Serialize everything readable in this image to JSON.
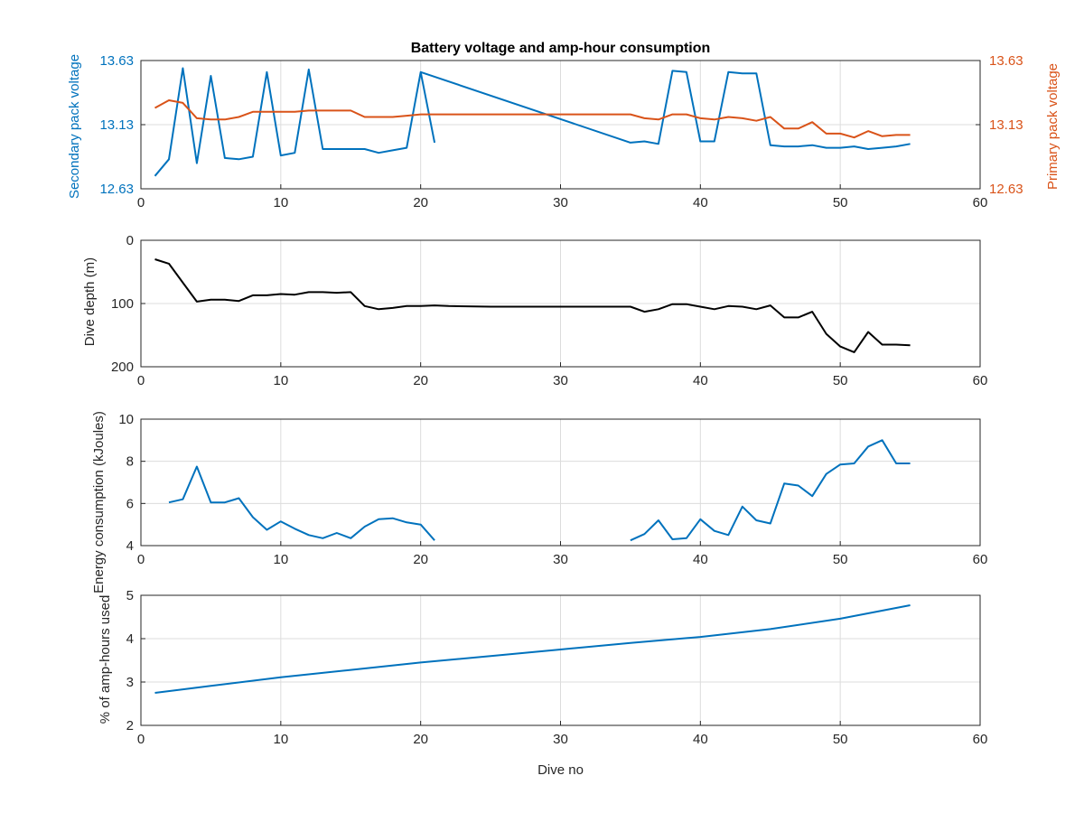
{
  "chart_data": [
    {
      "type": "line",
      "title": "Battery voltage and amp-hour consumption",
      "xlabel": "",
      "ylabel": "Secondary pack voltage",
      "ylabel_right": "Primary pack voltage",
      "xlim": [
        0,
        60
      ],
      "ylim": [
        12.63,
        13.63
      ],
      "ylim_right": [
        12.63,
        13.63
      ],
      "xticks": [
        "0",
        "10",
        "20",
        "30",
        "40",
        "50",
        "60"
      ],
      "yticks": [
        "12.63",
        "13.13",
        "13.63"
      ],
      "yticks_right": [
        "12.63",
        "13.13",
        "13.63"
      ],
      "grid": true,
      "series": [
        {
          "axis": "left",
          "color": "#0072bd",
          "points": [
            [
              1,
              12.73
            ],
            [
              2,
              12.86
            ],
            [
              3,
              13.57
            ],
            [
              4,
              12.83
            ],
            [
              5,
              13.51
            ],
            [
              6,
              12.87
            ],
            [
              7,
              12.86
            ],
            [
              8,
              12.88
            ],
            [
              9,
              13.54
            ],
            [
              10,
              12.89
            ],
            [
              11,
              12.91
            ],
            [
              12,
              13.56
            ],
            [
              13,
              12.94
            ],
            [
              14,
              12.94
            ],
            [
              15,
              12.94
            ],
            [
              16,
              12.94
            ],
            [
              17,
              12.91
            ],
            [
              18,
              12.93
            ],
            [
              19,
              12.95
            ],
            [
              20,
              13.54
            ],
            [
              21,
              12.99
            ]
          ]
        },
        {
          "axis": "left",
          "color": "#0072bd",
          "points": [
            [
              20,
              13.54
            ],
            [
              35,
              12.99
            ],
            [
              36,
              13.0
            ],
            [
              37,
              12.98
            ],
            [
              38,
              13.55
            ],
            [
              39,
              13.54
            ],
            [
              40,
              13.0
            ],
            [
              41,
              13.0
            ],
            [
              42,
              13.54
            ],
            [
              43,
              13.53
            ],
            [
              44,
              13.53
            ],
            [
              45,
              12.97
            ],
            [
              46,
              12.96
            ],
            [
              47,
              12.96
            ],
            [
              48,
              12.97
            ],
            [
              49,
              12.95
            ],
            [
              50,
              12.95
            ],
            [
              51,
              12.96
            ],
            [
              52,
              12.94
            ],
            [
              53,
              12.95
            ],
            [
              54,
              12.96
            ],
            [
              55,
              12.98
            ]
          ]
        },
        {
          "axis": "right",
          "color": "#d95319",
          "points": [
            [
              1,
              13.26
            ],
            [
              2,
              13.32
            ],
            [
              3,
              13.3
            ],
            [
              4,
              13.18
            ],
            [
              5,
              13.17
            ],
            [
              6,
              13.17
            ],
            [
              7,
              13.19
            ],
            [
              8,
              13.23
            ],
            [
              9,
              13.23
            ],
            [
              10,
              13.23
            ],
            [
              11,
              13.23
            ],
            [
              12,
              13.24
            ],
            [
              13,
              13.24
            ],
            [
              14,
              13.24
            ],
            [
              15,
              13.24
            ],
            [
              16,
              13.19
            ],
            [
              17,
              13.19
            ],
            [
              18,
              13.19
            ],
            [
              19,
              13.2
            ],
            [
              20,
              13.21
            ],
            [
              21,
              13.21
            ],
            [
              25,
              13.21
            ],
            [
              30,
              13.21
            ],
            [
              35,
              13.21
            ],
            [
              36,
              13.18
            ],
            [
              37,
              13.17
            ],
            [
              38,
              13.21
            ],
            [
              39,
              13.21
            ],
            [
              40,
              13.18
            ],
            [
              41,
              13.17
            ],
            [
              42,
              13.19
            ],
            [
              43,
              13.18
            ],
            [
              44,
              13.16
            ],
            [
              45,
              13.19
            ],
            [
              46,
              13.1
            ],
            [
              47,
              13.1
            ],
            [
              48,
              13.15
            ],
            [
              49,
              13.06
            ],
            [
              50,
              13.06
            ],
            [
              51,
              13.03
            ],
            [
              52,
              13.08
            ],
            [
              53,
              13.04
            ],
            [
              54,
              13.05
            ],
            [
              55,
              13.05
            ]
          ]
        }
      ]
    },
    {
      "type": "line",
      "title": "",
      "xlabel": "",
      "ylabel": "Dive depth (m)",
      "xlim": [
        0,
        60
      ],
      "ylim": [
        0,
        200
      ],
      "y_reversed": true,
      "xticks": [
        "0",
        "10",
        "20",
        "30",
        "40",
        "50",
        "60"
      ],
      "yticks": [
        "0",
        "100",
        "200"
      ],
      "grid": true,
      "series": [
        {
          "color": "#000000",
          "points": [
            [
              1,
              30
            ],
            [
              2,
              37
            ],
            [
              3,
              67
            ],
            [
              4,
              97
            ],
            [
              5,
              94
            ],
            [
              6,
              94
            ],
            [
              7,
              96
            ],
            [
              8,
              87
            ],
            [
              9,
              87
            ],
            [
              10,
              85
            ],
            [
              11,
              86
            ],
            [
              12,
              82
            ],
            [
              13,
              82
            ],
            [
              14,
              83
            ],
            [
              15,
              82
            ],
            [
              16,
              104
            ],
            [
              17,
              109
            ],
            [
              18,
              107
            ],
            [
              19,
              104
            ],
            [
              20,
              104
            ],
            [
              21,
              103
            ],
            [
              22,
              104
            ],
            [
              25,
              105
            ],
            [
              30,
              105
            ],
            [
              35,
              105
            ],
            [
              36,
              113
            ],
            [
              37,
              109
            ],
            [
              38,
              101
            ],
            [
              39,
              101
            ],
            [
              40,
              105
            ],
            [
              41,
              109
            ],
            [
              42,
              104
            ],
            [
              43,
              105
            ],
            [
              44,
              109
            ],
            [
              45,
              103
            ],
            [
              46,
              122
            ],
            [
              47,
              122
            ],
            [
              48,
              113
            ],
            [
              49,
              148
            ],
            [
              50,
              168
            ],
            [
              51,
              177
            ],
            [
              52,
              145
            ],
            [
              53,
              165
            ],
            [
              54,
              165
            ],
            [
              55,
              166
            ]
          ]
        }
      ]
    },
    {
      "type": "line",
      "title": "",
      "xlabel": "",
      "ylabel": "Energy consumption (kJoules)",
      "xlim": [
        0,
        60
      ],
      "ylim": [
        4,
        10
      ],
      "xticks": [
        "0",
        "10",
        "20",
        "30",
        "40",
        "50",
        "60"
      ],
      "yticks": [
        "4",
        "6",
        "8",
        "10"
      ],
      "grid": true,
      "series": [
        {
          "color": "#0072bd",
          "points": [
            [
              2,
              6.05
            ],
            [
              3,
              6.2
            ],
            [
              4,
              7.75
            ],
            [
              5,
              6.05
            ],
            [
              6,
              6.05
            ],
            [
              7,
              6.25
            ],
            [
              8,
              5.35
            ],
            [
              9,
              4.75
            ],
            [
              10,
              5.15
            ],
            [
              11,
              4.8
            ],
            [
              12,
              4.5
            ],
            [
              13,
              4.35
            ],
            [
              14,
              4.6
            ],
            [
              15,
              4.35
            ],
            [
              16,
              4.9
            ],
            [
              17,
              5.25
            ],
            [
              18,
              5.3
            ],
            [
              19,
              5.1
            ],
            [
              20,
              5.0
            ],
            [
              21,
              4.25
            ]
          ]
        },
        {
          "color": "#0072bd",
          "points": [
            [
              35,
              4.25
            ],
            [
              36,
              4.55
            ],
            [
              37,
              5.2
            ],
            [
              38,
              4.3
            ],
            [
              39,
              4.35
            ],
            [
              40,
              5.25
            ],
            [
              41,
              4.7
            ],
            [
              42,
              4.5
            ],
            [
              43,
              5.85
            ],
            [
              44,
              5.2
            ],
            [
              45,
              5.05
            ],
            [
              46,
              6.95
            ],
            [
              47,
              6.85
            ],
            [
              48,
              6.35
            ],
            [
              49,
              7.4
            ],
            [
              50,
              7.85
            ],
            [
              51,
              7.9
            ],
            [
              52,
              8.7
            ],
            [
              53,
              9.0
            ],
            [
              54,
              7.9
            ],
            [
              55,
              7.9
            ]
          ]
        }
      ]
    },
    {
      "type": "line",
      "title": "",
      "xlabel": "Dive no",
      "ylabel": "% of amp-hours used",
      "xlim": [
        0,
        60
      ],
      "ylim": [
        2,
        5
      ],
      "xticks": [
        "0",
        "10",
        "20",
        "30",
        "40",
        "50",
        "60"
      ],
      "yticks": [
        "2",
        "3",
        "4",
        "5"
      ],
      "grid": true,
      "series": [
        {
          "color": "#0072bd",
          "points": [
            [
              1,
              2.75
            ],
            [
              5,
              2.91
            ],
            [
              10,
              3.11
            ],
            [
              15,
              3.28
            ],
            [
              20,
              3.45
            ],
            [
              25,
              3.6
            ],
            [
              30,
              3.75
            ],
            [
              35,
              3.9
            ],
            [
              40,
              4.04
            ],
            [
              45,
              4.22
            ],
            [
              50,
              4.46
            ],
            [
              55,
              4.77
            ]
          ]
        }
      ]
    }
  ]
}
